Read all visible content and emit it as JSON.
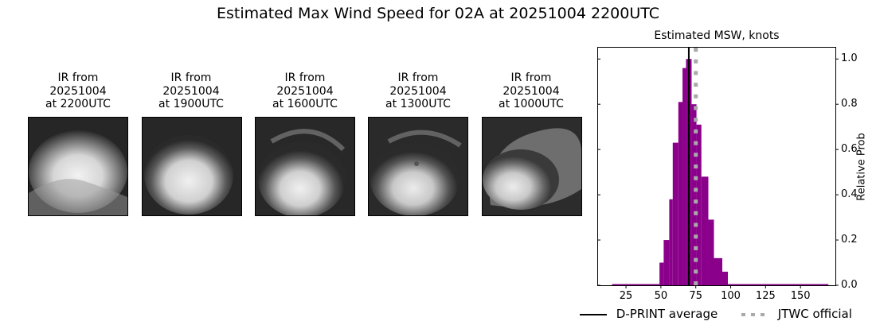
{
  "suptitle": "Estimated Max Wind Speed for 02A at 20251004 2200UTC",
  "ir_panels": [
    {
      "line1": "IR from",
      "line2": "20251004",
      "line3": "at 2200UTC"
    },
    {
      "line1": "IR from",
      "line2": "20251004",
      "line3": "at 1900UTC"
    },
    {
      "line1": "IR from",
      "line2": "20251004",
      "line3": "at 1600UTC"
    },
    {
      "line1": "IR from",
      "line2": "20251004",
      "line3": "at 1300UTC"
    },
    {
      "line1": "IR from",
      "line2": "20251004",
      "line3": "at 1000UTC"
    }
  ],
  "colors": {
    "histogram": "#8b008b",
    "dprint_line": "#000000",
    "jtwc_line": "#aaaaaa"
  },
  "chart_data": {
    "type": "bar",
    "title": "Estimated MSW, knots",
    "xlabel": "",
    "ylabel": "Relative Prob",
    "xlim": [
      5,
      175
    ],
    "ylim": [
      0,
      1.05
    ],
    "xticks": [
      25,
      50,
      75,
      100,
      125,
      150
    ],
    "yticks": [
      0.0,
      0.2,
      0.4,
      0.6,
      0.8,
      1.0
    ],
    "ytick_labels": [
      "0.0",
      "0.2",
      "0.4",
      "0.6",
      "0.8",
      "1.0"
    ],
    "y_axis_side": "right",
    "grid": false,
    "bins": [
      {
        "x0": 15,
        "x1": 49,
        "value": 0.005
      },
      {
        "x0": 49,
        "x1": 52,
        "value": 0.1
      },
      {
        "x0": 52,
        "x1": 56,
        "value": 0.2
      },
      {
        "x0": 56,
        "x1": 58.5,
        "value": 0.38
      },
      {
        "x0": 58.5,
        "x1": 62.5,
        "value": 0.63
      },
      {
        "x0": 62.5,
        "x1": 65.5,
        "value": 0.81
      },
      {
        "x0": 65.5,
        "x1": 68,
        "value": 0.96
      },
      {
        "x0": 68,
        "x1": 72,
        "value": 1.0
      },
      {
        "x0": 72,
        "x1": 75.5,
        "value": 0.8
      },
      {
        "x0": 75.5,
        "x1": 79,
        "value": 0.71
      },
      {
        "x0": 79,
        "x1": 84,
        "value": 0.48
      },
      {
        "x0": 84,
        "x1": 88,
        "value": 0.29
      },
      {
        "x0": 88,
        "x1": 94,
        "value": 0.12
      },
      {
        "x0": 94,
        "x1": 98,
        "value": 0.06
      },
      {
        "x0": 98,
        "x1": 170,
        "value": 0.003
      }
    ],
    "vlines": [
      {
        "name": "D-PRINT average",
        "x": 70,
        "style": "solid",
        "color": "#000000"
      },
      {
        "name": "JTWC official",
        "x": 75,
        "style": "dotted",
        "color": "#aaaaaa"
      }
    ],
    "legend": {
      "position": "below",
      "entries": [
        "D-PRINT average",
        "JTWC official"
      ]
    }
  }
}
